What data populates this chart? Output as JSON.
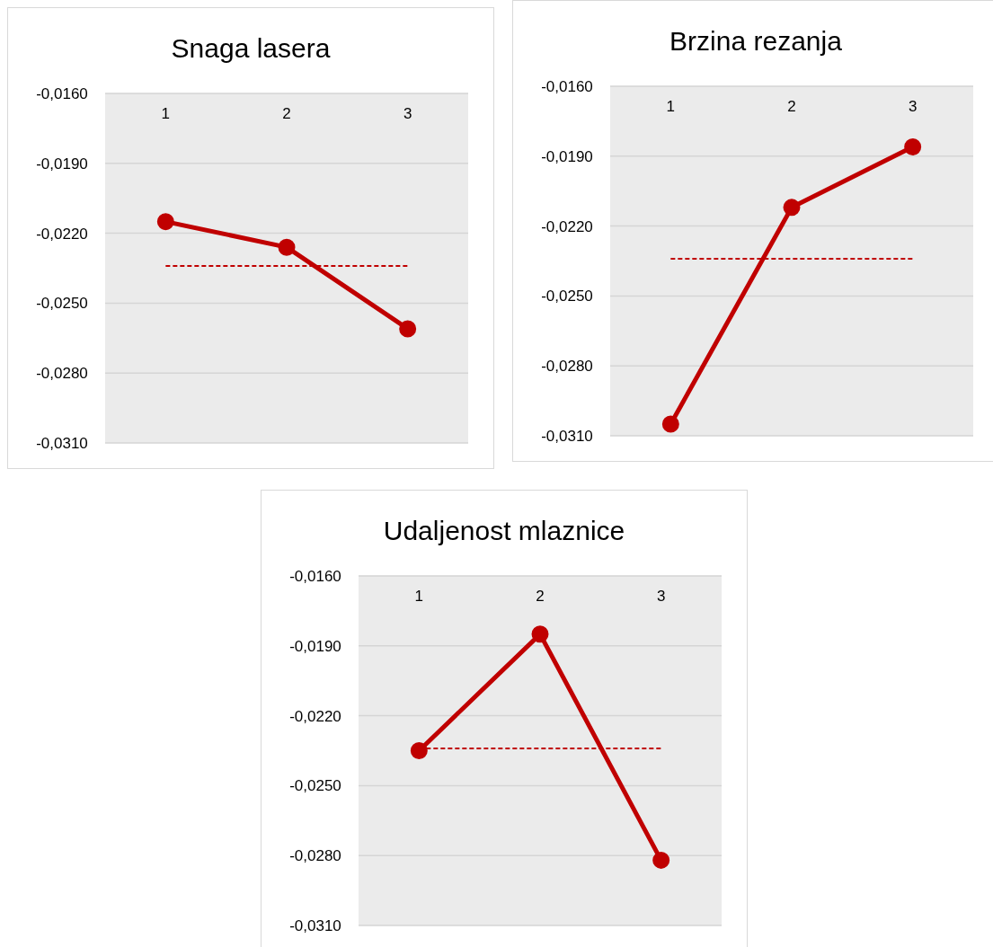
{
  "chart_data": [
    {
      "type": "line",
      "title": "Snaga lasera",
      "categories": [
        "1",
        "2",
        "3"
      ],
      "series": [
        {
          "color": "#c00000",
          "values": [
            -0.0215,
            -0.0226,
            -0.0261
          ]
        }
      ],
      "ylim": [
        -0.031,
        -0.016
      ],
      "yticks": [
        {
          "value": -0.016,
          "label": "-0,0160"
        },
        {
          "value": -0.019,
          "label": "-0,0190"
        },
        {
          "value": -0.022,
          "label": "-0,0220"
        },
        {
          "value": -0.025,
          "label": "-0,0250"
        },
        {
          "value": -0.028,
          "label": "-0,0280"
        },
        {
          "value": -0.031,
          "label": "-0,0310"
        }
      ],
      "grid": "y",
      "marker": "circle",
      "line_style": "solid",
      "ref_lines": [
        {
          "axis": "y",
          "value": -0.0234,
          "color": "#c00000",
          "line_style": "dashed"
        }
      ]
    },
    {
      "type": "line",
      "title": "Brzina rezanja",
      "categories": [
        "1",
        "2",
        "3"
      ],
      "series": [
        {
          "color": "#c00000",
          "values": [
            -0.0305,
            -0.0212,
            -0.0186
          ]
        }
      ],
      "ylim": [
        -0.031,
        -0.016
      ],
      "yticks": [
        {
          "value": -0.016,
          "label": "-0,0160"
        },
        {
          "value": -0.019,
          "label": "-0,0190"
        },
        {
          "value": -0.022,
          "label": "-0,0220"
        },
        {
          "value": -0.025,
          "label": "-0,0250"
        },
        {
          "value": -0.028,
          "label": "-0,0280"
        },
        {
          "value": -0.031,
          "label": "-0,0310"
        }
      ],
      "grid": "y",
      "marker": "circle",
      "line_style": "solid",
      "ref_lines": [
        {
          "axis": "y",
          "value": -0.0234,
          "color": "#c00000",
          "line_style": "dashed"
        }
      ]
    },
    {
      "type": "line",
      "title": "Udaljenost mlaznice",
      "categories": [
        "1",
        "2",
        "3"
      ],
      "series": [
        {
          "color": "#c00000",
          "values": [
            -0.0235,
            -0.0185,
            -0.0282
          ]
        }
      ],
      "ylim": [
        -0.031,
        -0.016
      ],
      "yticks": [
        {
          "value": -0.016,
          "label": "-0,0160"
        },
        {
          "value": -0.019,
          "label": "-0,0190"
        },
        {
          "value": -0.022,
          "label": "-0,0220"
        },
        {
          "value": -0.025,
          "label": "-0,0250"
        },
        {
          "value": -0.028,
          "label": "-0,0280"
        },
        {
          "value": -0.031,
          "label": "-0,0310"
        }
      ],
      "grid": "y",
      "marker": "circle",
      "line_style": "solid",
      "ref_lines": [
        {
          "axis": "y",
          "value": -0.0234,
          "color": "#c00000",
          "line_style": "dashed"
        }
      ]
    }
  ]
}
